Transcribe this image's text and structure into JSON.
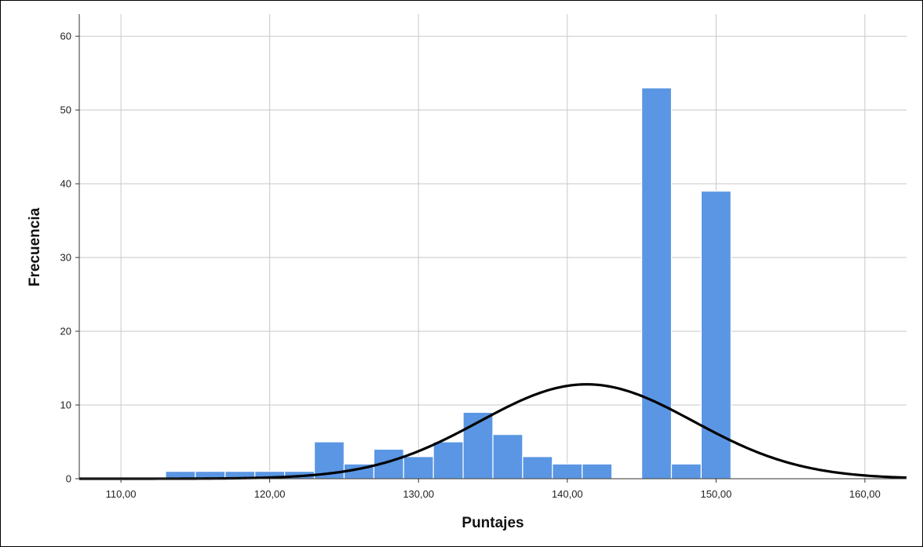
{
  "chart_data": {
    "type": "bar",
    "title": "",
    "xlabel": "Puntajes",
    "ylabel": "Frecuencia",
    "xlim": [
      107.2,
      162.8
    ],
    "ylim": [
      0,
      63
    ],
    "grid": true,
    "x_ticks": [
      "110,00",
      "120,00",
      "130,00",
      "140,00",
      "150,00",
      "160,00"
    ],
    "x_tick_values": [
      110,
      120,
      130,
      140,
      150,
      160
    ],
    "y_ticks": [
      "0",
      "10",
      "20",
      "30",
      "40",
      "50",
      "60"
    ],
    "y_tick_values": [
      0,
      10,
      20,
      30,
      40,
      50,
      60
    ],
    "bin_width": 2,
    "bins": [
      {
        "start": 113,
        "end": 115,
        "value": 1
      },
      {
        "start": 115,
        "end": 117,
        "value": 1
      },
      {
        "start": 117,
        "end": 119,
        "value": 1
      },
      {
        "start": 119,
        "end": 121,
        "value": 1
      },
      {
        "start": 121,
        "end": 123,
        "value": 1
      },
      {
        "start": 123,
        "end": 125,
        "value": 5
      },
      {
        "start": 125,
        "end": 127,
        "value": 2
      },
      {
        "start": 127,
        "end": 129,
        "value": 4
      },
      {
        "start": 129,
        "end": 131,
        "value": 3
      },
      {
        "start": 131,
        "end": 133,
        "value": 5
      },
      {
        "start": 133,
        "end": 135,
        "value": 9
      },
      {
        "start": 135,
        "end": 137,
        "value": 6
      },
      {
        "start": 137,
        "end": 139,
        "value": 3
      },
      {
        "start": 139,
        "end": 141,
        "value": 2
      },
      {
        "start": 141,
        "end": 143,
        "value": 2
      },
      {
        "start": 145,
        "end": 147,
        "value": 53
      },
      {
        "start": 147,
        "end": 149,
        "value": 2
      },
      {
        "start": 149,
        "end": 151,
        "value": 39
      }
    ],
    "normal_curve": {
      "mean": 141.3,
      "sd": 7.2,
      "peak": 12.8
    },
    "bar_color": "#5a96e3",
    "bar_edge_color": "#ffffff",
    "curve_color": "#000000",
    "grid_color": "#c8c8c8"
  }
}
